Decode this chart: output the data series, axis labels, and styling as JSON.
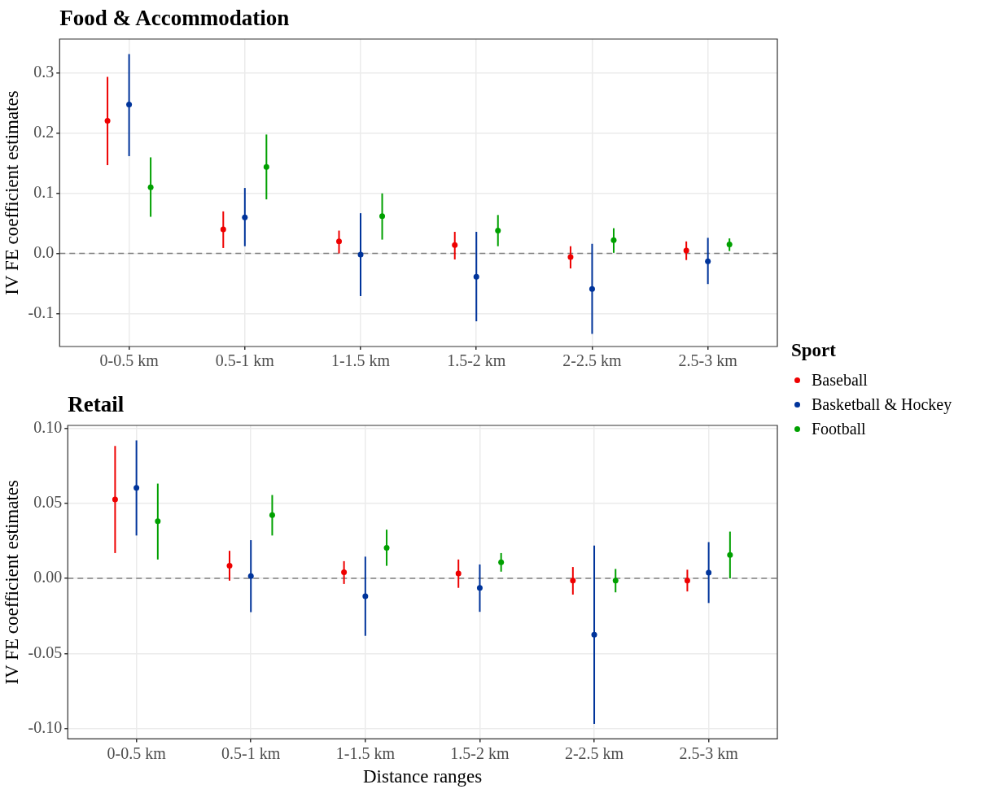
{
  "chart_data": [
    {
      "type": "scatter",
      "title": "Food & Accommodation",
      "ylabel": "IV FE coefficient estimates",
      "legend_title": "Sport",
      "legend": "right",
      "grid": true,
      "marker": "circle",
      "categories": [
        "0-0.5 km",
        "0.5-1 km",
        "1-1.5 km",
        "1.5-2 km",
        "2-2.5 km",
        "2.5-3 km"
      ],
      "ylim": [
        -0.155,
        0.357
      ],
      "yticks": [
        {
          "value": -0.1,
          "label": "-0.1"
        },
        {
          "value": 0,
          "label": "0.0"
        },
        {
          "value": 0.1,
          "label": "0.1"
        },
        {
          "value": 0.2,
          "label": "0.2"
        },
        {
          "value": 0.3,
          "label": "0.3"
        }
      ],
      "ref_lines": [
        {
          "axis": "y",
          "value": 0,
          "color": "#808080",
          "line_style": "dashed"
        }
      ],
      "series": [
        {
          "name": "Baseball",
          "color": "#ee0000",
          "values": [
            0.221,
            0.04,
            0.02,
            0.014,
            -0.006,
            0.005
          ],
          "errors": [
            [
              0.147,
              0.294
            ],
            [
              0.009,
              0.07
            ],
            [
              0.0,
              0.038
            ],
            [
              -0.01,
              0.036
            ],
            [
              -0.025,
              0.012
            ],
            [
              -0.011,
              0.02
            ]
          ]
        },
        {
          "name": "Basketball & Hockey",
          "color": "#00349b",
          "values": [
            0.248,
            0.06,
            -0.002,
            -0.039,
            -0.059,
            -0.013
          ],
          "errors": [
            [
              0.162,
              0.332
            ],
            [
              0.012,
              0.109
            ],
            [
              -0.071,
              0.067
            ],
            [
              -0.113,
              0.036
            ],
            [
              -0.134,
              0.016
            ],
            [
              -0.051,
              0.026
            ]
          ]
        },
        {
          "name": "Football",
          "color": "#00a000",
          "values": [
            0.11,
            0.144,
            0.062,
            0.038,
            0.022,
            0.015
          ],
          "errors": [
            [
              0.061,
              0.16
            ],
            [
              0.09,
              0.198
            ],
            [
              0.023,
              0.1
            ],
            [
              0.012,
              0.064
            ],
            [
              0.001,
              0.042
            ],
            [
              0.004,
              0.025
            ]
          ]
        }
      ]
    },
    {
      "type": "scatter",
      "title": "Retail",
      "xlabel": "Distance ranges",
      "ylabel": "IV FE coefficient estimates",
      "grid": true,
      "marker": "circle",
      "categories": [
        "0-0.5 km",
        "0.5-1 km",
        "1-1.5 km",
        "1.5-2 km",
        "2-2.5 km",
        "2.5-3 km"
      ],
      "ylim": [
        -0.107,
        0.102
      ],
      "yticks": [
        {
          "value": -0.1,
          "label": "-0.10"
        },
        {
          "value": -0.05,
          "label": "-0.05"
        },
        {
          "value": 0,
          "label": "0.00"
        },
        {
          "value": 0.05,
          "label": "0.05"
        },
        {
          "value": 0.1,
          "label": "0.10"
        }
      ],
      "ref_lines": [
        {
          "axis": "y",
          "value": 0,
          "color": "#808080",
          "line_style": "dashed"
        }
      ],
      "series": [
        {
          "color": "#ee0000",
          "values": [
            0.0526,
            0.0084,
            0.0041,
            0.0033,
            -0.0015,
            -0.0015
          ],
          "errors": [
            [
              0.0169,
              0.0883
            ],
            [
              -0.0015,
              0.0184
            ],
            [
              -0.0037,
              0.0115
            ],
            [
              -0.0063,
              0.0126
            ],
            [
              -0.0108,
              0.0076
            ],
            [
              -0.0087,
              0.0058
            ]
          ]
        },
        {
          "color": "#00349b",
          "values": [
            0.0604,
            0.0015,
            -0.0119,
            -0.0063,
            -0.0375,
            0.0039
          ],
          "errors": [
            [
              0.0286,
              0.092
            ],
            [
              -0.0225,
              0.0255
            ],
            [
              -0.0383,
              0.0145
            ],
            [
              -0.0223,
              0.0093
            ],
            [
              -0.097,
              0.0219
            ],
            [
              -0.0164,
              0.0242
            ]
          ]
        },
        {
          "color": "#00a000",
          "values": [
            0.0381,
            0.0422,
            0.0204,
            0.0108,
            -0.0015,
            0.0156
          ],
          "errors": [
            [
              0.0126,
              0.0632
            ],
            [
              0.0286,
              0.0556
            ],
            [
              0.0084,
              0.0325
            ],
            [
              0.0045,
              0.0169
            ],
            [
              -0.0093,
              0.0063
            ],
            [
              0.0,
              0.0312
            ]
          ]
        }
      ]
    }
  ]
}
